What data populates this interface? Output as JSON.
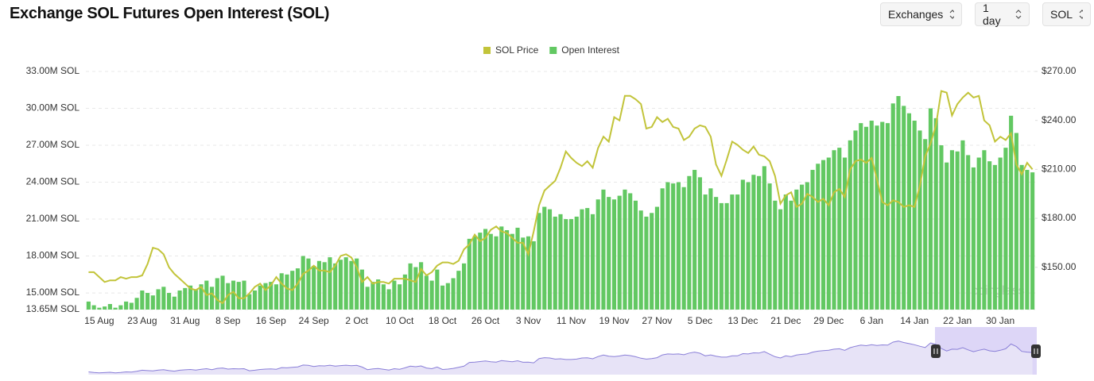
{
  "header": {
    "title": "Exchange SOL Futures Open Interest (SOL)"
  },
  "controls": [
    "Exchanges",
    "1 day",
    "SOL"
  ],
  "watermark": "coinglass",
  "chart_data": {
    "type": "bar",
    "categories": [
      null,
      null,
      "15 Aug",
      null,
      null,
      null,
      null,
      null,
      null,
      null,
      "23 Aug",
      null,
      null,
      null,
      null,
      null,
      null,
      null,
      "31 Aug",
      null,
      null,
      null,
      null,
      null,
      null,
      null,
      "8 Sep",
      null,
      null,
      null,
      null,
      null,
      null,
      null,
      "16 Sep",
      null,
      null,
      null,
      null,
      null,
      null,
      null,
      "24 Sep",
      null,
      null,
      null,
      null,
      null,
      null,
      null,
      "2 Oct",
      null,
      null,
      null,
      null,
      null,
      null,
      null,
      "10 Oct",
      null,
      null,
      null,
      null,
      null,
      null,
      null,
      "18 Oct",
      null,
      null,
      null,
      null,
      null,
      null,
      null,
      "26 Oct",
      null,
      null,
      null,
      null,
      null,
      null,
      null,
      "3 Nov",
      null,
      null,
      null,
      null,
      null,
      null,
      null,
      "11 Nov",
      null,
      null,
      null,
      null,
      null,
      null,
      null,
      "19 Nov",
      null,
      null,
      null,
      null,
      null,
      null,
      null,
      "27 Nov",
      null,
      null,
      null,
      null,
      null,
      null,
      null,
      "5 Dec",
      null,
      null,
      null,
      null,
      null,
      null,
      null,
      "13 Dec",
      null,
      null,
      null,
      null,
      null,
      null,
      null,
      "21 Dec",
      null,
      null,
      null,
      null,
      null,
      null,
      null,
      "29 Dec",
      null,
      null,
      null,
      null,
      null,
      null,
      null,
      "6 Jan",
      null,
      null,
      null,
      null,
      null,
      null,
      null,
      "14 Jan",
      null,
      null,
      null,
      null,
      null,
      null,
      null,
      "22 Jan",
      null,
      null,
      null,
      null,
      null,
      null,
      null,
      "30 Jan",
      null,
      null,
      null,
      null,
      null,
      null
    ],
    "series": [
      {
        "name": "SOL Price",
        "type": "line",
        "axis": "y2",
        "color": "#c2c43a",
        "values": [
          147,
          147,
          144,
          141,
          142,
          142,
          144,
          143,
          144,
          144,
          145,
          152,
          162,
          161,
          158,
          150,
          146,
          143,
          140,
          137,
          136,
          138,
          133,
          134,
          130,
          128,
          133,
          135,
          131,
          131,
          134,
          138,
          140,
          136,
          139,
          144,
          140,
          137,
          136,
          140,
          146,
          148,
          151,
          148,
          148,
          147,
          151,
          157,
          158,
          156,
          150,
          141,
          144,
          140,
          141,
          141,
          140,
          143,
          143,
          143,
          142,
          141,
          149,
          145,
          147,
          151,
          153,
          153,
          152,
          154,
          161,
          164,
          170,
          166,
          168,
          173,
          175,
          172,
          171,
          168,
          165,
          165,
          158,
          172,
          188,
          197,
          200,
          203,
          211,
          221,
          217,
          214,
          212,
          215,
          211,
          223,
          230,
          227,
          242,
          240,
          255,
          255,
          253,
          250,
          235,
          236,
          242,
          239,
          241,
          236,
          235,
          228,
          230,
          235,
          237,
          236,
          230,
          213,
          206,
          216,
          227,
          225,
          222,
          220,
          224,
          219,
          218,
          215,
          206,
          189,
          194,
          196,
          187,
          189,
          195,
          193,
          190,
          192,
          188,
          196,
          198,
          193,
          210,
          215,
          216,
          214,
          217,
          204,
          190,
          188,
          191,
          190,
          187,
          188,
          187,
          200,
          218,
          226,
          237,
          258,
          257,
          243,
          250,
          254,
          257,
          254,
          255,
          240,
          237,
          227,
          230,
          228,
          232,
          213,
          207,
          214,
          210
        ]
      },
      {
        "name": "Open Interest",
        "type": "bar",
        "color": "#62c862",
        "values": [
          14.3,
          14.0,
          13.8,
          13.9,
          14.1,
          13.8,
          14.0,
          14.3,
          14.2,
          14.6,
          15.2,
          15.0,
          14.8,
          15.3,
          15.5,
          15.0,
          14.7,
          15.2,
          15.4,
          15.6,
          15.3,
          15.7,
          16.0,
          15.5,
          16.2,
          16.4,
          15.8,
          16.0,
          15.9,
          16.0,
          14.9,
          15.2,
          15.6,
          15.8,
          15.9,
          15.7,
          16.6,
          16.5,
          16.8,
          17.0,
          18.0,
          17.8,
          17.2,
          17.6,
          17.5,
          17.9,
          17.4,
          17.7,
          17.9,
          17.6,
          17.8,
          16.9,
          15.5,
          15.9,
          16.1,
          15.7,
          15.3,
          16.0,
          15.7,
          16.5,
          17.4,
          17.1,
          17.5,
          16.4,
          16.0,
          16.9,
          15.6,
          15.8,
          16.2,
          16.8,
          17.4,
          19.4,
          19.6,
          19.9,
          20.2,
          19.8,
          19.6,
          20.4,
          20.1,
          19.8,
          20.3,
          19.5,
          19.6,
          19.2,
          21.5,
          22.0,
          21.8,
          21.2,
          21.4,
          21.0,
          21.0,
          21.2,
          21.8,
          21.9,
          21.4,
          22.6,
          23.4,
          22.8,
          22.6,
          22.9,
          23.4,
          23.1,
          22.5,
          21.7,
          21.2,
          21.5,
          22.0,
          23.5,
          24.0,
          23.9,
          24.0,
          23.6,
          24.5,
          25.0,
          24.4,
          23.0,
          23.5,
          22.8,
          22.3,
          22.3,
          23.0,
          23.0,
          24.2,
          24.0,
          24.6,
          24.5,
          25.3,
          23.9,
          22.5,
          21.8,
          23.0,
          22.5,
          23.4,
          23.8,
          24.0,
          25.0,
          25.5,
          25.8,
          26.0,
          26.6,
          26.8,
          26.0,
          27.4,
          28.2,
          28.8,
          28.5,
          29.0,
          28.6,
          28.9,
          28.8,
          30.4,
          31.0,
          30.2,
          29.6,
          29.0,
          28.2,
          27.5,
          30.0,
          29.2,
          27.0,
          25.6,
          26.6,
          26.5,
          27.4,
          26.2,
          25.2,
          26.0,
          26.6,
          25.7,
          25.4,
          26.0,
          26.8,
          29.4,
          28.0,
          25.4,
          25.0,
          24.8
        ]
      }
    ],
    "ylim": [
      13.65,
      33
    ],
    "yticks": [
      {
        "value": 13.65,
        "label": "13.65M SOL"
      },
      {
        "value": 15,
        "label": "15.00M SOL"
      },
      {
        "value": 18,
        "label": "18.00M SOL"
      },
      {
        "value": 21,
        "label": "21.00M SOL"
      },
      {
        "value": 24,
        "label": "24.00M SOL"
      },
      {
        "value": 27,
        "label": "27.00M SOL"
      },
      {
        "value": 30,
        "label": "30.00M SOL"
      },
      {
        "value": 33,
        "label": "33.00M SOL"
      }
    ],
    "y2lim": [
      124.1,
      270
    ],
    "y2ticks": [
      {
        "value": 150,
        "label": "$150.00"
      },
      {
        "value": 180,
        "label": "$180.00"
      },
      {
        "value": 210,
        "label": "$210.00"
      },
      {
        "value": 240,
        "label": "$240.00"
      },
      {
        "value": 270,
        "label": "$270.00"
      }
    ],
    "grid": true,
    "legend": "top"
  }
}
